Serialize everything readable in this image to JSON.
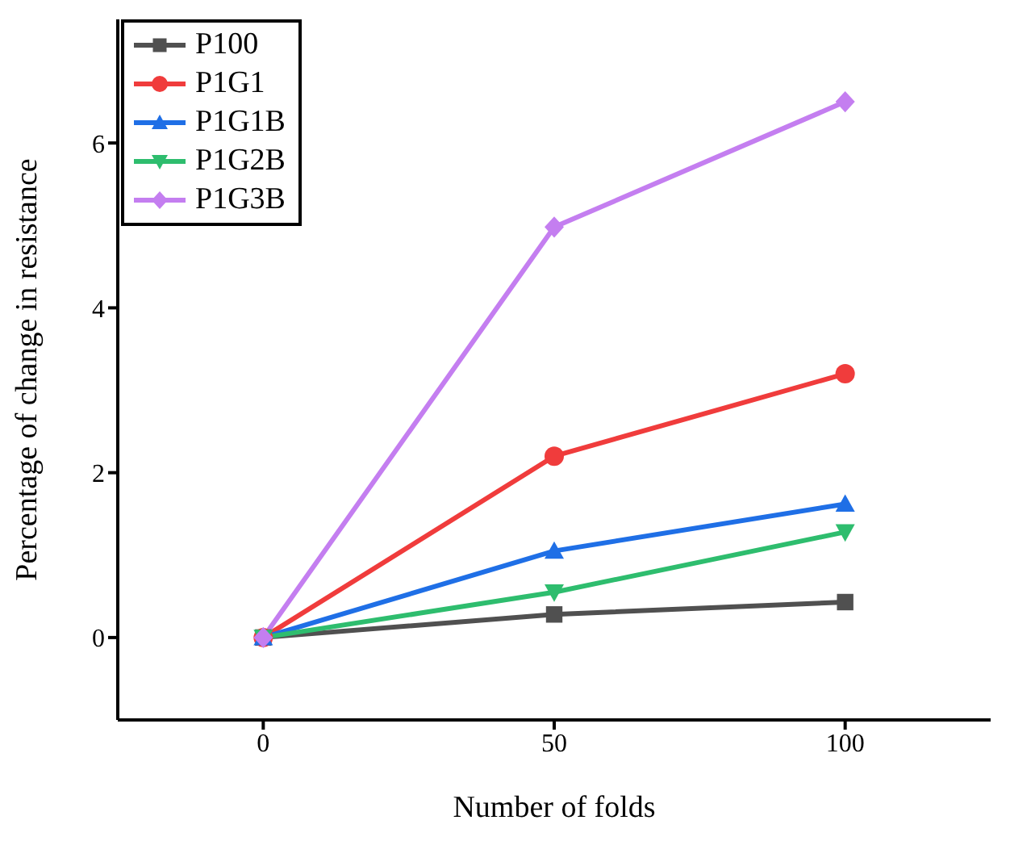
{
  "chart_data": {
    "type": "line",
    "xlabel": "Number of folds",
    "ylabel": "Percentage of change in resistance",
    "x": [
      0,
      50,
      100
    ],
    "xlim": [
      -25,
      125
    ],
    "xticks": [
      0,
      50,
      100
    ],
    "ylim": [
      -1,
      7.5
    ],
    "yticks": [
      0,
      2,
      4,
      6
    ],
    "grid": false,
    "legend": "top left",
    "series": [
      {
        "name": "P100",
        "color": "#505050",
        "marker": "square",
        "values": [
          0,
          0.28,
          0.43
        ]
      },
      {
        "name": "P1G1",
        "color": "#f03c3c",
        "marker": "circle",
        "values": [
          0,
          2.2,
          3.2
        ]
      },
      {
        "name": "P1G1B",
        "color": "#1f6fe6",
        "marker": "triangle",
        "values": [
          0,
          1.05,
          1.62
        ]
      },
      {
        "name": "P1G2B",
        "color": "#2ebd6e",
        "marker": "triangle-down",
        "values": [
          0,
          0.55,
          1.28
        ]
      },
      {
        "name": "P1G3B",
        "color": "#c47ef0",
        "marker": "diamond",
        "values": [
          0,
          4.98,
          6.5
        ]
      }
    ]
  }
}
